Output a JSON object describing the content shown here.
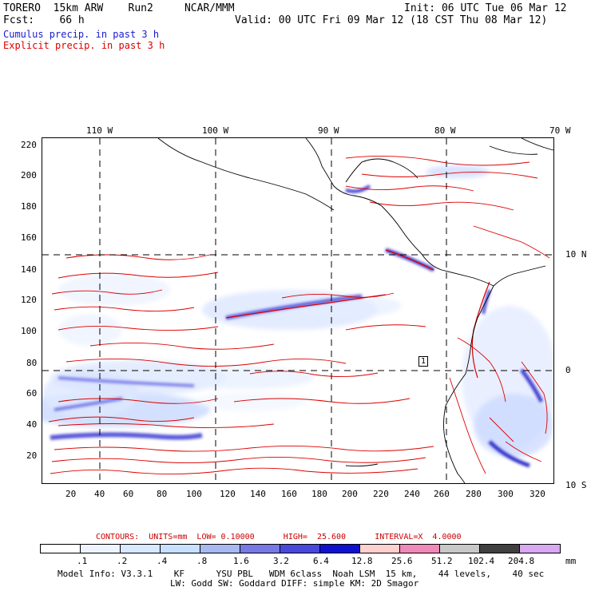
{
  "header": {
    "model": "TORERO  15km ARW    Run2     NCAR/MMM",
    "init": "Init: 06 UTC Tue 06 Mar 12",
    "fcst": "Fcst:    66 h",
    "valid": "Valid: 00 UTC Fri 09 Mar 12 (18 CST Thu 08 Mar 12)",
    "legend_cumulus": "Cumulus precip. in past 3 h",
    "legend_explicit": "Explicit precip. in past 3 h"
  },
  "colors": {
    "cumulus": "#1a1acc",
    "explicit": "#dd0000",
    "contour_text": "#cc0000"
  },
  "top_axis": [
    "110 W",
    "100 W",
    "90 W",
    "80 W",
    "70 W"
  ],
  "right_axis": [
    "10 N",
    "0",
    "10 S"
  ],
  "left_axis": [
    "220",
    "200",
    "180",
    "160",
    "140",
    "120",
    "100",
    "80",
    "60",
    "40",
    "20"
  ],
  "bottom_axis": [
    "20",
    "40",
    "60",
    "80",
    "100",
    "120",
    "140",
    "160",
    "180",
    "200",
    "220",
    "240",
    "260",
    "280",
    "300",
    "320"
  ],
  "contour_label": "1",
  "contours_line": "CONTOURS:  UNITS=mm  LOW= 0.10000      HIGH=  25.600      INTERVAL=X  4.0000",
  "colorbar": {
    "colors": [
      "#ffffff",
      "#eef4ff",
      "#d8e8ff",
      "#c0d8ff",
      "#a8b8f0",
      "#8080e8",
      "#5050e0",
      "#2020d8",
      "#0000b0",
      "#ffd0d0",
      "#ff9898",
      "#e86aa8",
      "#c8c8c8",
      "#808080",
      "#404040",
      "#d8a8f0"
    ],
    "labels": [
      ".1",
      ".2",
      ".4",
      ".8",
      "1.6",
      "3.2",
      "6.4",
      "12.8",
      "25.6",
      "51.2",
      "102.4",
      "204.8"
    ],
    "unit": "mm"
  },
  "footer": {
    "line1": "Model Info: V3.3.1    KF      YSU PBL   WDM 6class  Noah LSM  15 km,    44 levels,    40 sec",
    "line2": "LW: Godd SW: Goddard DIFF: simple KM: 2D Smagor"
  }
}
